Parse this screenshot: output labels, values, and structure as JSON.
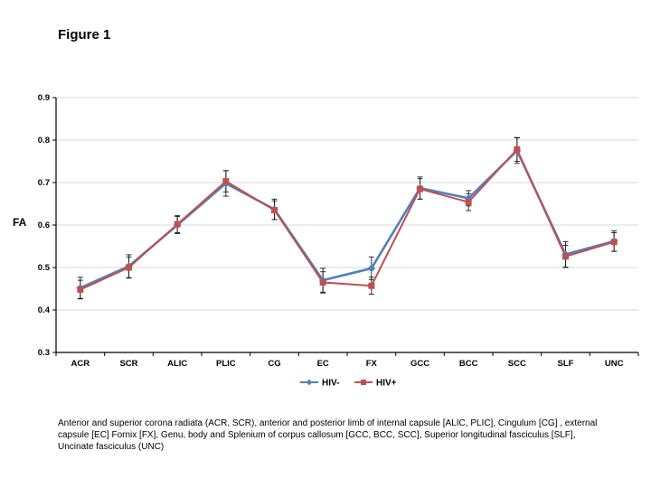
{
  "figure": {
    "title": "Figure 1",
    "caption": "Anterior and superior corona radiata (ACR, SCR), anterior and posterior limb of internal capsule [ALIC, PLIC], Cingulum [CG] , external capsule [EC] Fornix [FX], Genu, body and Splenium of corpus callosum [GCC, BCC, SCC], Superior longitudinal fasciculus [SLF], Uncinate fasciculus (UNC)"
  },
  "chart_data": {
    "type": "line",
    "title": "",
    "xlabel": "",
    "ylabel": "FA",
    "ylim": [
      0.3,
      0.9
    ],
    "yticks": [
      "0.3",
      "0.4",
      "0.5",
      "0.6",
      "0.7",
      "0.8",
      "0.9"
    ],
    "grid": true,
    "grid_color": "#d9d9d9",
    "legend_position": "bottom",
    "categories": [
      "ACR",
      "SCR",
      "ALIC",
      "PLIC",
      "CG",
      "EC",
      "FX",
      "GCC",
      "BCC",
      "SCC",
      "SLF",
      "UNC"
    ],
    "series": [
      {
        "name": "HIV-",
        "color": "#4F81BD",
        "marker": "diamond",
        "values": [
          0.452,
          0.503,
          0.6,
          0.698,
          0.637,
          0.47,
          0.498,
          0.687,
          0.663,
          0.775,
          0.531,
          0.562
        ],
        "error": [
          0.025,
          0.027,
          0.02,
          0.03,
          0.024,
          0.028,
          0.027,
          0.026,
          0.018,
          0.03,
          0.03,
          0.024
        ]
      },
      {
        "name": "HIV+",
        "color": "#C0504D",
        "marker": "square",
        "values": [
          0.448,
          0.5,
          0.602,
          0.703,
          0.635,
          0.465,
          0.457,
          0.685,
          0.654,
          0.778,
          0.526,
          0.56
        ],
        "error": [
          0.022,
          0.025,
          0.02,
          0.025,
          0.022,
          0.025,
          0.02,
          0.024,
          0.02,
          0.028,
          0.026,
          0.022
        ]
      }
    ]
  }
}
